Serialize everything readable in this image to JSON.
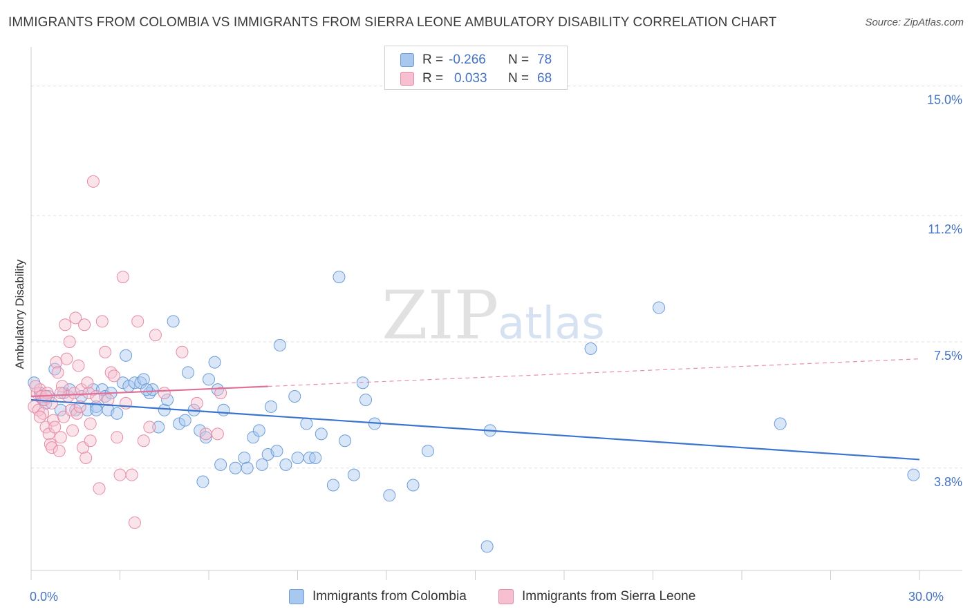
{
  "title": "IMMIGRANTS FROM COLOMBIA VS IMMIGRANTS FROM SIERRA LEONE AMBULATORY DISABILITY CORRELATION CHART",
  "source": "Source: ZipAtlas.com",
  "watermark": {
    "zip": "ZIP",
    "atlas": "atlas"
  },
  "legend": {
    "rows": [
      {
        "r_label": "R =",
        "r_value": "-0.266",
        "n_label": "N =",
        "n_value": "78",
        "color": "#a9c8f0",
        "border": "#6b9bd8"
      },
      {
        "r_label": "R =",
        "r_value": "0.033",
        "n_label": "N =",
        "n_value": "68",
        "color": "#f7c0d0",
        "border": "#e68aa6"
      }
    ]
  },
  "bottom_legend": [
    {
      "label": "Immigrants from Colombia",
      "color": "#a9c8f0",
      "border": "#6b9bd8"
    },
    {
      "label": "Immigrants from Sierra Leone",
      "color": "#f7c0d0",
      "border": "#e68aa6"
    }
  ],
  "chart_data": {
    "type": "scatter",
    "ylabel": "Ambulatory Disability",
    "xlim": [
      0,
      30
    ],
    "ylim": [
      0.8,
      16.0
    ],
    "x_tick_labels": [
      {
        "value": 0,
        "label": "0.0%"
      },
      {
        "value": 30,
        "label": "30.0%"
      }
    ],
    "y_ticks": [
      {
        "value": 15.0,
        "label": "15.0%"
      },
      {
        "value": 11.2,
        "label": "11.2%"
      },
      {
        "value": 7.5,
        "label": "7.5%"
      },
      {
        "value": 3.8,
        "label": "3.8%"
      }
    ],
    "grid": true,
    "legend_position": "top-center",
    "series": [
      {
        "name": "Immigrants from Colombia",
        "color": "#6b9bd8",
        "fill": "rgba(169,200,240,0.45)",
        "trend": {
          "x0": 0.0,
          "y0": 5.8,
          "x1": 30.0,
          "y1": 4.05,
          "dashed_from": null
        },
        "points": [
          [
            0.1,
            6.3
          ],
          [
            0.3,
            6.0
          ],
          [
            0.4,
            5.8
          ],
          [
            0.6,
            5.9
          ],
          [
            0.8,
            6.7
          ],
          [
            1.1,
            6.0
          ],
          [
            1.3,
            6.1
          ],
          [
            1.5,
            5.5
          ],
          [
            1.7,
            5.9
          ],
          [
            1.9,
            5.5
          ],
          [
            2.1,
            6.1
          ],
          [
            2.2,
            5.6
          ],
          [
            2.4,
            6.1
          ],
          [
            2.5,
            5.9
          ],
          [
            2.6,
            5.5
          ],
          [
            2.9,
            5.4
          ],
          [
            3.1,
            6.3
          ],
          [
            3.2,
            7.1
          ],
          [
            3.3,
            6.2
          ],
          [
            3.5,
            6.3
          ],
          [
            3.7,
            6.3
          ],
          [
            3.8,
            6.4
          ],
          [
            4.0,
            6.0
          ],
          [
            4.1,
            6.1
          ],
          [
            4.3,
            5.0
          ],
          [
            4.5,
            5.5
          ],
          [
            4.6,
            5.8
          ],
          [
            4.8,
            8.1
          ],
          [
            5.0,
            5.1
          ],
          [
            5.2,
            5.2
          ],
          [
            5.3,
            6.6
          ],
          [
            5.5,
            5.5
          ],
          [
            5.7,
            4.9
          ],
          [
            5.8,
            3.4
          ],
          [
            5.9,
            4.7
          ],
          [
            6.0,
            6.4
          ],
          [
            6.2,
            6.9
          ],
          [
            6.3,
            6.1
          ],
          [
            6.4,
            3.9
          ],
          [
            6.5,
            5.5
          ],
          [
            6.9,
            3.8
          ],
          [
            7.2,
            4.1
          ],
          [
            7.3,
            3.8
          ],
          [
            7.5,
            4.7
          ],
          [
            7.7,
            4.9
          ],
          [
            7.8,
            3.9
          ],
          [
            8.0,
            4.2
          ],
          [
            8.1,
            5.6
          ],
          [
            8.3,
            4.3
          ],
          [
            8.4,
            7.4
          ],
          [
            8.6,
            3.9
          ],
          [
            8.9,
            5.9
          ],
          [
            9.0,
            4.1
          ],
          [
            9.3,
            5.1
          ],
          [
            9.4,
            4.1
          ],
          [
            9.6,
            4.1
          ],
          [
            9.8,
            4.8
          ],
          [
            10.2,
            3.3
          ],
          [
            10.4,
            9.4
          ],
          [
            10.6,
            4.6
          ],
          [
            10.9,
            3.6
          ],
          [
            11.2,
            6.3
          ],
          [
            11.3,
            5.8
          ],
          [
            11.6,
            5.1
          ],
          [
            12.1,
            3.0
          ],
          [
            12.9,
            3.3
          ],
          [
            13.4,
            4.3
          ],
          [
            15.4,
            1.5
          ],
          [
            15.5,
            4.9
          ],
          [
            18.9,
            7.3
          ],
          [
            21.2,
            8.5
          ],
          [
            25.3,
            5.1
          ],
          [
            29.8,
            3.6
          ],
          [
            2.2,
            5.5
          ],
          [
            3.9,
            6.1
          ],
          [
            1.0,
            5.5
          ],
          [
            0.5,
            5.7
          ],
          [
            2.7,
            6.0
          ]
        ]
      },
      {
        "name": "Immigrants from Sierra Leone",
        "color": "#e68aa6",
        "fill": "rgba(247,192,208,0.45)",
        "trend": {
          "x0": 0.0,
          "y0": 5.9,
          "x1": 30.0,
          "y1": 7.0,
          "dashed_from": 8.0
        },
        "points": [
          [
            0.1,
            5.6
          ],
          [
            0.2,
            6.0
          ],
          [
            0.25,
            5.5
          ],
          [
            0.3,
            6.1
          ],
          [
            0.35,
            5.9
          ],
          [
            0.4,
            5.4
          ],
          [
            0.45,
            5.8
          ],
          [
            0.5,
            5.0
          ],
          [
            0.55,
            6.0
          ],
          [
            0.6,
            4.8
          ],
          [
            0.65,
            4.5
          ],
          [
            0.7,
            4.4
          ],
          [
            0.75,
            5.2
          ],
          [
            0.8,
            5.0
          ],
          [
            0.85,
            6.9
          ],
          [
            0.9,
            6.6
          ],
          [
            0.95,
            4.3
          ],
          [
            1.0,
            4.7
          ],
          [
            1.05,
            6.2
          ],
          [
            1.1,
            5.3
          ],
          [
            1.15,
            8.0
          ],
          [
            1.2,
            7.0
          ],
          [
            1.25,
            5.9
          ],
          [
            1.3,
            7.5
          ],
          [
            1.35,
            5.5
          ],
          [
            1.4,
            4.9
          ],
          [
            1.45,
            6.0
          ],
          [
            1.5,
            8.2
          ],
          [
            1.55,
            5.4
          ],
          [
            1.6,
            6.8
          ],
          [
            1.65,
            5.6
          ],
          [
            1.7,
            6.1
          ],
          [
            1.75,
            4.4
          ],
          [
            1.8,
            8.0
          ],
          [
            1.85,
            4.1
          ],
          [
            1.9,
            6.3
          ],
          [
            1.95,
            6.0
          ],
          [
            2.0,
            4.6
          ],
          [
            2.1,
            12.2
          ],
          [
            2.2,
            5.9
          ],
          [
            2.3,
            3.2
          ],
          [
            2.4,
            8.1
          ],
          [
            2.5,
            7.2
          ],
          [
            2.6,
            5.8
          ],
          [
            2.7,
            6.6
          ],
          [
            2.8,
            6.5
          ],
          [
            2.9,
            4.7
          ],
          [
            3.0,
            3.6
          ],
          [
            3.1,
            9.4
          ],
          [
            3.2,
            5.7
          ],
          [
            3.4,
            3.6
          ],
          [
            3.5,
            2.2
          ],
          [
            3.6,
            8.1
          ],
          [
            3.8,
            4.6
          ],
          [
            4.0,
            5.0
          ],
          [
            4.2,
            7.7
          ],
          [
            4.5,
            6.0
          ],
          [
            5.1,
            7.2
          ],
          [
            5.6,
            5.7
          ],
          [
            5.9,
            4.8
          ],
          [
            6.3,
            4.8
          ],
          [
            6.4,
            6.0
          ],
          [
            0.3,
            5.3
          ],
          [
            0.15,
            6.2
          ],
          [
            0.7,
            5.7
          ],
          [
            1.0,
            6.0
          ],
          [
            2.0,
            5.1
          ],
          [
            0.5,
            5.9
          ]
        ]
      }
    ]
  }
}
